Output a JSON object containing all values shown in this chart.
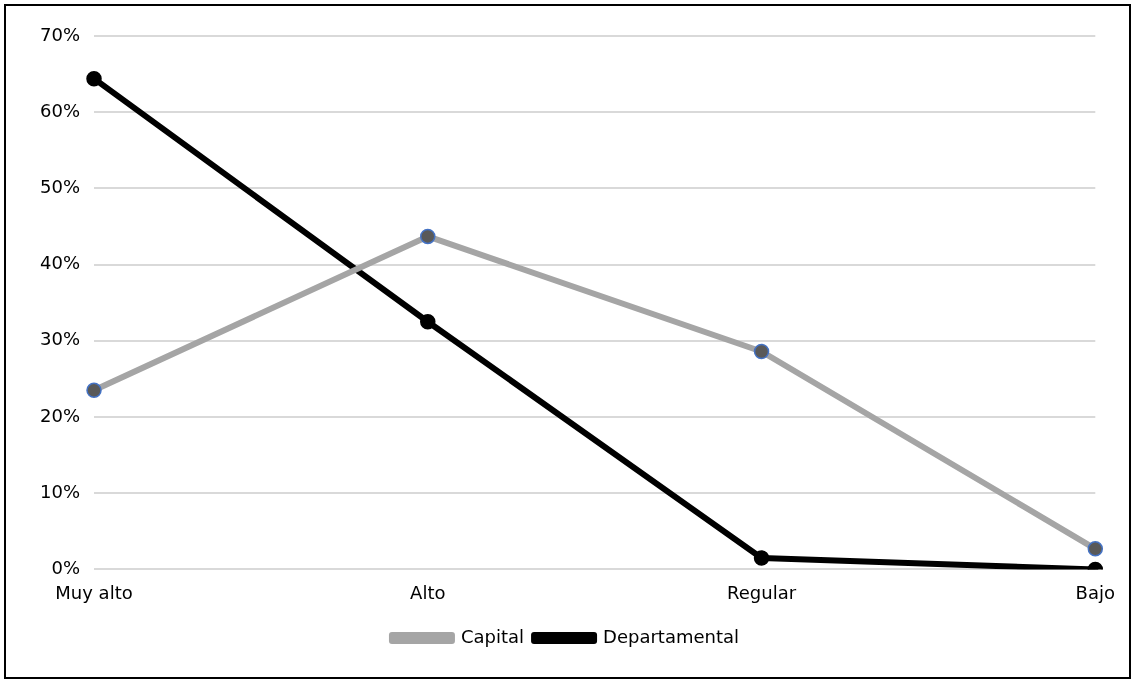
{
  "chart_data": {
    "type": "line",
    "categories": [
      "Muy alto",
      "Alto",
      "Regular",
      "Bajo"
    ],
    "series": [
      {
        "name": "Capital",
        "color": "#a5a5a5",
        "values": [
          23.5,
          43.7,
          28.6,
          2.7
        ]
      },
      {
        "name": "Departamental",
        "color": "#000000",
        "values": [
          64.4,
          32.5,
          1.5,
          0
        ]
      }
    ],
    "ylim": [
      0,
      70
    ],
    "yticks": [
      {
        "value": 0,
        "label": "0%"
      },
      {
        "value": 10,
        "label": "10%"
      },
      {
        "value": 20,
        "label": "20%"
      },
      {
        "value": 30,
        "label": "30%"
      },
      {
        "value": 40,
        "label": "40%"
      },
      {
        "value": 50,
        "label": "50%"
      },
      {
        "value": 60,
        "label": "60%"
      },
      {
        "value": 70,
        "label": "70%"
      }
    ],
    "grid": "y",
    "legend": "bottom",
    "marker": "circle",
    "line_style": "solid"
  }
}
